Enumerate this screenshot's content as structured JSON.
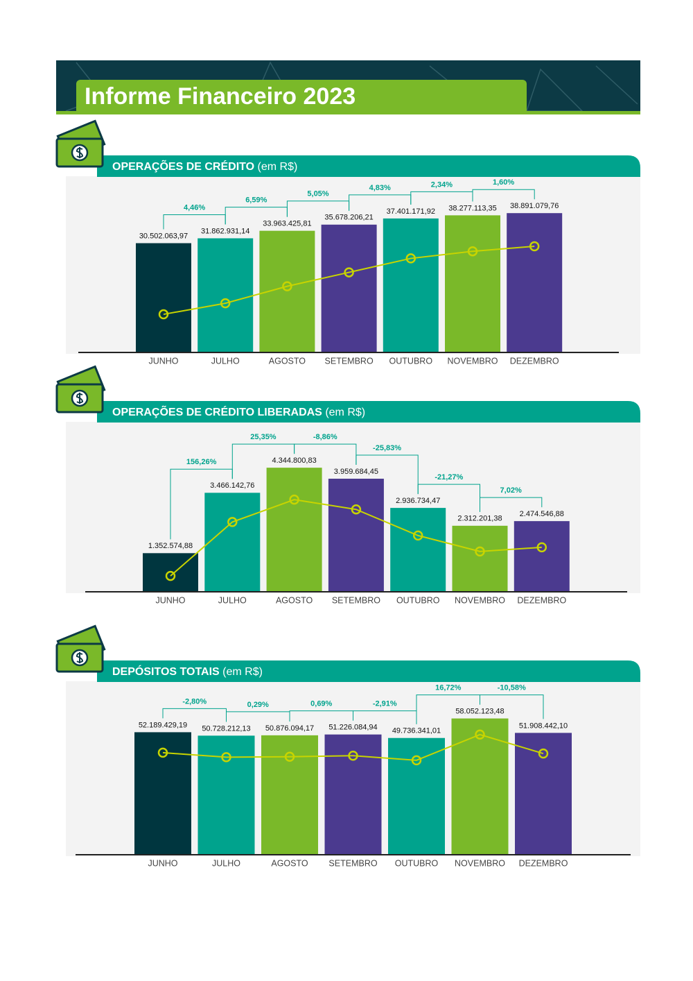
{
  "header": {
    "title": "Informe Financeiro 2023"
  },
  "chart_data": [
    {
      "type": "bar",
      "title": "OPERAÇÕES DE CRÉDITO",
      "subtitle": "(em R$)",
      "categories": [
        "JUNHO",
        "JULHO",
        "AGOSTO",
        "SETEMBRO",
        "OUTUBRO",
        "NOVEMBRO",
        "DEZEMBRO"
      ],
      "values": [
        30502063.97,
        31862931.14,
        33963425.81,
        35678206.21,
        37401171.92,
        38277113.35,
        38891079.76
      ],
      "value_labels": [
        "30.502.063,97",
        "31.862.931,14",
        "33.963.425,81",
        "35.678.206,21",
        "37.401.171,92",
        "38.277.113,35",
        "38.891.079,76"
      ],
      "changes": {
        "values": [
          4.46,
          6.59,
          5.05,
          4.83,
          2.34,
          1.6
        ],
        "value_labels": [
          "4,46%",
          "6,59%",
          "5,05%",
          "4,83%",
          "2,34%",
          "1,60%"
        ]
      },
      "colors": [
        "#00363f",
        "#00a38d",
        "#7ab929",
        "#4b3a8f",
        "#00a38d",
        "#7ab929",
        "#4b3a8f"
      ],
      "line_color": "#c8d400",
      "ylim": [
        0,
        49000000
      ],
      "y2lim": [
        25800000,
        47450000
      ]
    },
    {
      "type": "bar",
      "title": "OPERAÇÕES DE CRÉDITO LIBERADAS",
      "subtitle": "(em R$)",
      "categories": [
        "JUNHO",
        "JULHO",
        "AGOSTO",
        "SETEMBRO",
        "OUTUBRO",
        "NOVEMBRO",
        "DEZEMBRO"
      ],
      "values": [
        1352574.88,
        3466142.76,
        4344800.83,
        3959684.45,
        2936734.47,
        2312201.38,
        2474546.88
      ],
      "value_labels": [
        "1.352.574,88",
        "3.466.142,76",
        "4.344.800,83",
        "3.959.684,45",
        "2.936.734,47",
        "2.312.201,38",
        "2.474.546,88"
      ],
      "changes": {
        "values": [
          156.26,
          25.35,
          -8.86,
          -25.83,
          -21.27,
          7.02
        ],
        "value_labels": [
          "156,26%",
          "25,35%",
          "-8,86%",
          "-25,83%",
          "-21,27%",
          "7,02%"
        ]
      },
      "colors": [
        "#00363f",
        "#00a38d",
        "#7ab929",
        "#4b3a8f",
        "#00a38d",
        "#7ab929",
        "#4b3a8f"
      ],
      "line_color": "#c8d400",
      "ylim": [
        0,
        6000000
      ],
      "y2lim": [
        730000,
        7450000
      ]
    },
    {
      "type": "bar",
      "title": "DEPÓSITOS TOTAIS",
      "subtitle": "(em R$)",
      "categories": [
        "JUNHO",
        "JULHO",
        "AGOSTO",
        "SETEMBRO",
        "OUTUBRO",
        "NOVEMBRO",
        "DEZEMBRO"
      ],
      "values": [
        52189429.19,
        50728212.13,
        50876094.17,
        51226084.94,
        49736341.01,
        58052123.48,
        51908442.1
      ],
      "value_labels": [
        "52.189.429,19",
        "50.728.212,13",
        "50.876.094,17",
        "51.226.084,94",
        "49.736.341,01",
        "58.052.123,48",
        "51.908.442,10"
      ],
      "changes": {
        "values": [
          -2.8,
          0.29,
          0.69,
          -2.91,
          16.72,
          -10.58
        ],
        "value_labels": [
          "-2,80%",
          "0,29%",
          "0,69%",
          "-2,91%",
          "16,72%",
          "-10,58%"
        ]
      },
      "colors": [
        "#00363f",
        "#00a38d",
        "#7ab929",
        "#4b3a8f",
        "#00a38d",
        "#7ab929",
        "#4b3a8f"
      ],
      "line_color": "#c8d400",
      "ylim": [
        0,
        73000000
      ],
      "y2lim": [
        19200000,
        74600000
      ]
    }
  ]
}
